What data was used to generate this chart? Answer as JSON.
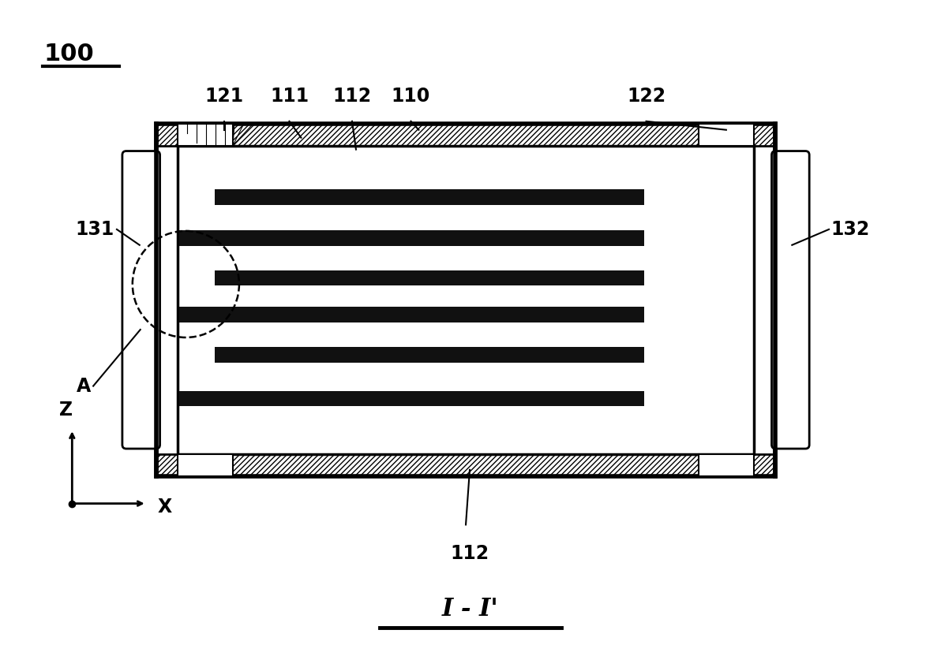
{
  "bg_color": "#ffffff",
  "fig_width": 11.92,
  "fig_height": 8.51,
  "title": "I - I'",
  "label_100": "100",
  "label_131": "131",
  "label_132": "132",
  "label_121": "121",
  "label_122": "122",
  "label_111": "111",
  "label_112": "112",
  "label_110": "110",
  "label_A": "A",
  "label_Z": "Z",
  "label_X": "X",
  "outer_lw": 4.0,
  "inner_lw": 2.5,
  "bar_color": "#111111",
  "line_color": "#000000"
}
